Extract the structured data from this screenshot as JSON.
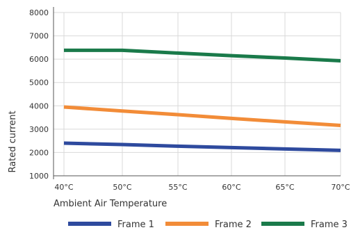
{
  "chart_data": {
    "type": "line",
    "xlabel": "Ambient Air Temperature",
    "ylabel": "Rated current",
    "x": [
      40,
      50,
      55,
      60,
      65,
      70
    ],
    "x_tick_labels": [
      "40°C",
      "50°C",
      "55°C",
      "60°C",
      "65°C",
      "70°C"
    ],
    "y_ticks": [
      1000,
      2000,
      3000,
      4000,
      5000,
      6000,
      7000,
      8000
    ],
    "y_tick_labels": [
      "1000",
      "2000",
      "3000",
      "4000",
      "5000",
      "6000",
      "7000",
      "8000"
    ],
    "ylim": [
      1000,
      8000
    ],
    "grid": true,
    "legend": "bottom",
    "series": [
      {
        "name": "Frame 1",
        "color": "#2e4a9e",
        "values": [
          2400,
          2340,
          2270,
          2210,
          2150,
          2090
        ]
      },
      {
        "name": "Frame 2",
        "color": "#f28c38",
        "values": [
          3950,
          3780,
          3620,
          3460,
          3310,
          3160
        ]
      },
      {
        "name": "Frame 3",
        "color": "#1a7a4a",
        "values": [
          6380,
          6380,
          6260,
          6150,
          6050,
          5930
        ]
      }
    ]
  }
}
